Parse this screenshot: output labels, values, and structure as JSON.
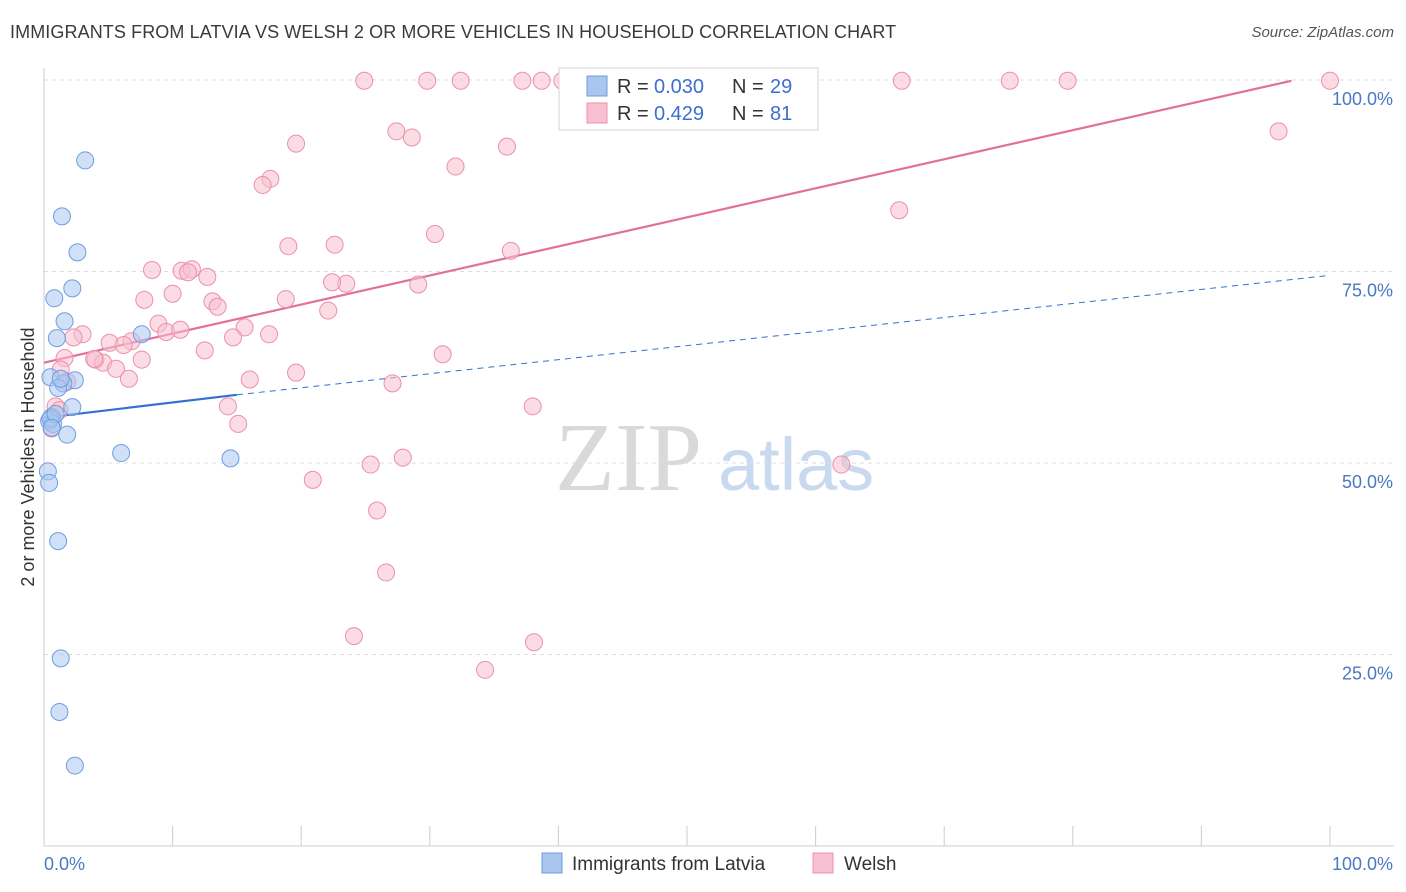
{
  "header": {
    "title": "IMMIGRANTS FROM LATVIA VS WELSH 2 OR MORE VEHICLES IN HOUSEHOLD CORRELATION CHART",
    "source": "Source: ZipAtlas.com"
  },
  "watermark": {
    "zip": "ZIP",
    "atlas": "atlas"
  },
  "colors": {
    "blue_fill": "#a9c6ee",
    "blue_stroke": "#6d9ee0",
    "blue_line": "#3271d1",
    "pink_fill": "#f7c0d0",
    "pink_stroke": "#ec8fac",
    "pink_line": "#e0719a",
    "grid": "#dddddd",
    "tick_text": "#4a78c2"
  },
  "chart_data": {
    "type": "scatter",
    "xlabel": "",
    "ylabel": "2 or more Vehicles in Household",
    "xlim": [
      0,
      100
    ],
    "ylim": [
      0,
      100
    ],
    "x_tick_labels": [
      "0.0%",
      "100.0%"
    ],
    "y_tick_labels": [
      "25.0%",
      "50.0%",
      "75.0%",
      "100.0%"
    ],
    "y_ticks": [
      25,
      50,
      75,
      100
    ],
    "grid": true,
    "legend_position": "top-center",
    "stats": [
      {
        "r_label": "R =",
        "r_value": "0.030",
        "n_label": "N =",
        "n_value": "29"
      },
      {
        "r_label": "R =",
        "r_value": "0.429",
        "n_label": "N =",
        "n_value": "81"
      }
    ],
    "series": [
      {
        "name": "Immigrants from Latvia",
        "color": "#a9c6ee",
        "trend": {
          "x0": 0,
          "y0": 55.9,
          "x1": 15,
          "y1": 58.9,
          "dash_x1": 100,
          "dash_y1": 74.5
        },
        "points": [
          [
            3.2,
            89.5
          ],
          [
            1.4,
            82.2
          ],
          [
            2.6,
            77.5
          ],
          [
            2.2,
            72.8
          ],
          [
            0.8,
            71.5
          ],
          [
            1.6,
            68.5
          ],
          [
            7.6,
            66.8
          ],
          [
            1.0,
            66.3
          ],
          [
            0.5,
            61.2
          ],
          [
            2.4,
            60.8
          ],
          [
            1.5,
            60.4
          ],
          [
            1.1,
            59.8
          ],
          [
            2.2,
            57.3
          ],
          [
            0.6,
            56.0
          ],
          [
            0.4,
            55.5
          ],
          [
            0.7,
            55.1
          ],
          [
            1.8,
            53.7
          ],
          [
            6.0,
            51.3
          ],
          [
            14.5,
            50.6
          ],
          [
            0.3,
            48.9
          ],
          [
            0.4,
            47.4
          ],
          [
            1.1,
            39.8
          ],
          [
            1.3,
            24.5
          ],
          [
            1.2,
            17.5
          ],
          [
            2.4,
            10.5
          ],
          [
            0.5,
            55.8
          ],
          [
            0.9,
            56.4
          ],
          [
            1.3,
            61.0
          ],
          [
            0.6,
            54.6
          ]
        ]
      },
      {
        "name": "Welsh",
        "color": "#f7c0d0",
        "trend": {
          "x0": 0,
          "y0": 63.1,
          "x1": 97,
          "y1": 99.9
        },
        "points": [
          [
            24.9,
            99.9
          ],
          [
            29.8,
            99.9
          ],
          [
            32.4,
            99.9
          ],
          [
            37.2,
            99.9
          ],
          [
            38.7,
            99.9
          ],
          [
            40.3,
            99.9
          ],
          [
            41.0,
            99.9
          ],
          [
            41.6,
            99.9
          ],
          [
            47.9,
            99.9
          ],
          [
            49.8,
            99.9
          ],
          [
            66.7,
            99.9
          ],
          [
            75.1,
            99.9
          ],
          [
            79.6,
            99.9
          ],
          [
            101.2,
            99.9
          ],
          [
            27.4,
            93.3
          ],
          [
            28.6,
            92.5
          ],
          [
            19.6,
            91.7
          ],
          [
            36.0,
            91.3
          ],
          [
            96.0,
            93.3
          ],
          [
            32.0,
            88.7
          ],
          [
            17.6,
            87.1
          ],
          [
            17.0,
            86.3
          ],
          [
            66.5,
            83.0
          ],
          [
            30.4,
            79.9
          ],
          [
            22.6,
            78.5
          ],
          [
            19.0,
            78.3
          ],
          [
            36.3,
            77.7
          ],
          [
            8.4,
            75.2
          ],
          [
            10.7,
            75.1
          ],
          [
            11.5,
            75.3
          ],
          [
            11.2,
            74.9
          ],
          [
            12.7,
            74.3
          ],
          [
            23.5,
            73.4
          ],
          [
            29.1,
            73.3
          ],
          [
            22.4,
            73.6
          ],
          [
            10.0,
            72.1
          ],
          [
            7.8,
            71.3
          ],
          [
            13.1,
            71.1
          ],
          [
            13.5,
            70.4
          ],
          [
            18.8,
            71.4
          ],
          [
            22.1,
            69.9
          ],
          [
            8.9,
            68.2
          ],
          [
            9.5,
            67.1
          ],
          [
            10.6,
            67.4
          ],
          [
            15.6,
            67.7
          ],
          [
            3.0,
            66.8
          ],
          [
            2.3,
            66.4
          ],
          [
            17.5,
            66.8
          ],
          [
            14.7,
            66.4
          ],
          [
            6.8,
            65.9
          ],
          [
            5.1,
            65.7
          ],
          [
            6.2,
            65.4
          ],
          [
            12.5,
            64.7
          ],
          [
            4.0,
            63.5
          ],
          [
            4.6,
            63.1
          ],
          [
            1.6,
            63.7
          ],
          [
            3.9,
            63.6
          ],
          [
            7.6,
            63.5
          ],
          [
            31.0,
            64.2
          ],
          [
            5.6,
            62.3
          ],
          [
            1.3,
            62.2
          ],
          [
            19.6,
            61.8
          ],
          [
            6.6,
            61.0
          ],
          [
            16.0,
            60.9
          ],
          [
            27.1,
            60.4
          ],
          [
            1.8,
            60.6
          ],
          [
            14.3,
            57.4
          ],
          [
            38.0,
            57.4
          ],
          [
            0.9,
            57.4
          ],
          [
            15.1,
            55.1
          ],
          [
            0.6,
            54.5
          ],
          [
            27.9,
            50.7
          ],
          [
            25.4,
            49.8
          ],
          [
            62.0,
            49.8
          ],
          [
            20.9,
            47.8
          ],
          [
            25.9,
            43.8
          ],
          [
            26.6,
            35.7
          ],
          [
            24.1,
            27.4
          ],
          [
            38.1,
            26.6
          ],
          [
            34.3,
            23.0
          ],
          [
            1.2,
            56.9
          ]
        ]
      }
    ]
  }
}
